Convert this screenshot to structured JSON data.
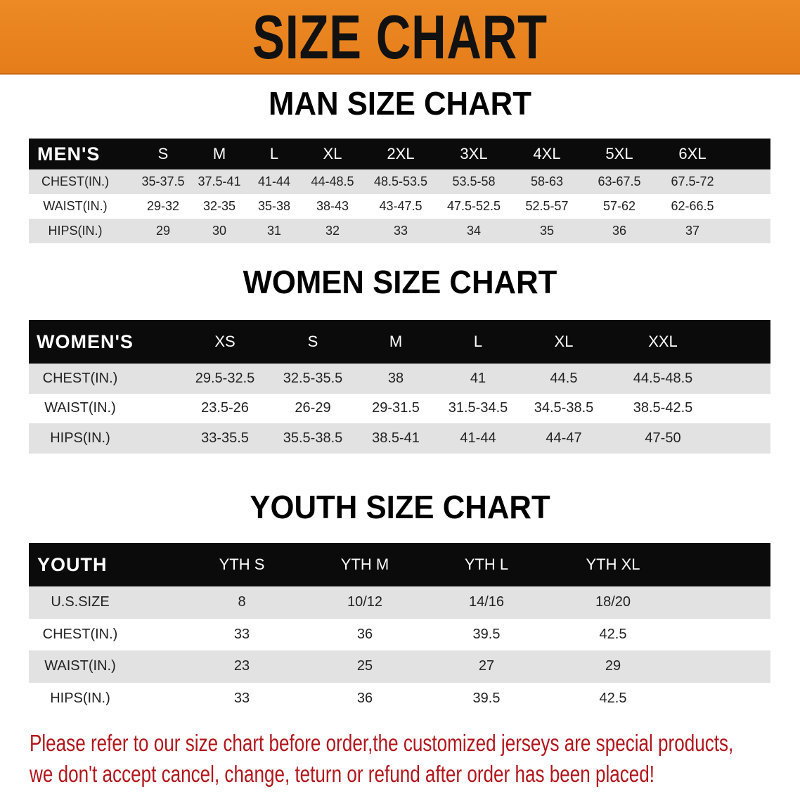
{
  "banner_title": "SIZE CHART",
  "colors": {
    "banner": "#e8841f",
    "header_bg": "#0b0b0b",
    "row_gray": "#e2e2e2",
    "note_text": "#b1161c"
  },
  "men": {
    "title": "MAN SIZE CHART",
    "header_label": "MEN'S",
    "sizes": [
      "S",
      "M",
      "L",
      "XL",
      "2XL",
      "3XL",
      "4XL",
      "5XL",
      "6XL"
    ],
    "rows": [
      {
        "label": "CHEST(IN.)",
        "values": [
          "35-37.5",
          "37.5-41",
          "41-44",
          "44-48.5",
          "48.5-53.5",
          "53.5-58",
          "58-63",
          "63-67.5",
          "67.5-72"
        ]
      },
      {
        "label": "WAIST(IN.)",
        "values": [
          "29-32",
          "32-35",
          "35-38",
          "38-43",
          "43-47.5",
          "47.5-52.5",
          "52.5-57",
          "57-62",
          "62-66.5"
        ]
      },
      {
        "label": "HIPS(IN.)",
        "values": [
          "29",
          "30",
          "31",
          "32",
          "33",
          "34",
          "35",
          "36",
          "37"
        ]
      }
    ]
  },
  "women": {
    "title": "WOMEN SIZE CHART",
    "header_label": "WOMEN'S",
    "sizes": [
      "XS",
      "S",
      "M",
      "L",
      "XL",
      "XXL"
    ],
    "rows": [
      {
        "label": "CHEST(IN.)",
        "values": [
          "29.5-32.5",
          "32.5-35.5",
          "38",
          "41",
          "44.5",
          "44.5-48.5"
        ]
      },
      {
        "label": "WAIST(IN.)",
        "values": [
          "23.5-26",
          "26-29",
          "29-31.5",
          "31.5-34.5",
          "34.5-38.5",
          "38.5-42.5"
        ]
      },
      {
        "label": "HIPS(IN.)",
        "values": [
          "33-35.5",
          "35.5-38.5",
          "38.5-41",
          "41-44",
          "44-47",
          "47-50"
        ]
      }
    ]
  },
  "youth": {
    "title": "YOUTH SIZE CHART",
    "header_label": "YOUTH",
    "sizes": [
      "YTH S",
      "YTH M",
      "YTH L",
      "YTH XL"
    ],
    "rows": [
      {
        "label": "U.S.SIZE",
        "values": [
          "8",
          "10/12",
          "14/16",
          "18/20"
        ]
      },
      {
        "label": "CHEST(IN.)",
        "values": [
          "33",
          "36",
          "39.5",
          "42.5"
        ]
      },
      {
        "label": "WAIST(IN.)",
        "values": [
          "23",
          "25",
          "27",
          "29"
        ]
      },
      {
        "label": "HIPS(IN.)",
        "values": [
          "33",
          "36",
          "39.5",
          "42.5"
        ]
      }
    ]
  },
  "note": {
    "line1": "Please refer to our size chart before order,the customized jerseys are special products,",
    "line2": "we don't accept cancel, change, teturn or refund after order has been placed!"
  }
}
